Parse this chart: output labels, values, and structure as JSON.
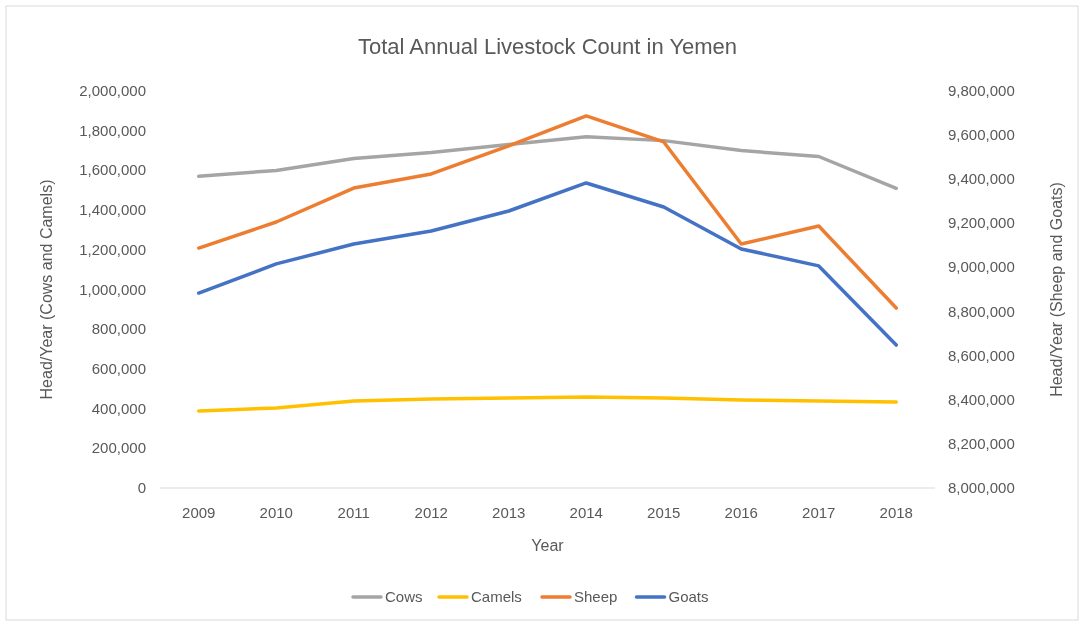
{
  "chart_data": {
    "type": "line",
    "title": "Total Annual Livestock Count in Yemen",
    "xlabel": "Year",
    "ylabel": "Head/Year (Cows and Camels)",
    "y2label": "Head/Year (Sheep and Goats)",
    "categories": [
      "2009",
      "2010",
      "2011",
      "2012",
      "2013",
      "2014",
      "2015",
      "2016",
      "2017",
      "2018"
    ],
    "ylim": [
      0,
      2000000
    ],
    "yticks": [
      {
        "value": 0,
        "label": "0"
      },
      {
        "value": 200000,
        "label": "200,000"
      },
      {
        "value": 400000,
        "label": "400,000"
      },
      {
        "value": 600000,
        "label": "600,000"
      },
      {
        "value": 800000,
        "label": "800,000"
      },
      {
        "value": 1000000,
        "label": "1,000,000"
      },
      {
        "value": 1200000,
        "label": "1,200,000"
      },
      {
        "value": 1400000,
        "label": "1,400,000"
      },
      {
        "value": 1600000,
        "label": "1,600,000"
      },
      {
        "value": 1800000,
        "label": "1,800,000"
      },
      {
        "value": 2000000,
        "label": "2,000,000"
      }
    ],
    "y2lim": [
      8000000,
      9800000
    ],
    "y2ticks": [
      {
        "value": 8000000,
        "label": "8,000,000"
      },
      {
        "value": 8200000,
        "label": "8,200,000"
      },
      {
        "value": 8400000,
        "label": "8,400,000"
      },
      {
        "value": 8600000,
        "label": "8,600,000"
      },
      {
        "value": 8800000,
        "label": "8,800,000"
      },
      {
        "value": 9000000,
        "label": "9,000,000"
      },
      {
        "value": 9200000,
        "label": "9,200,000"
      },
      {
        "value": 9400000,
        "label": "9,400,000"
      },
      {
        "value": 9600000,
        "label": "9,600,000"
      },
      {
        "value": 9800000,
        "label": "9,800,000"
      }
    ],
    "series": [
      {
        "name": "Cows",
        "color": "#a5a5a5",
        "values": [
          1570000,
          1600000,
          1660000,
          1690000,
          1730000,
          1770000,
          1750000,
          1700000,
          1670000,
          1510000
        ]
      },
      {
        "name": "Camels",
        "color": "#ffc000",
        "values": [
          388000,
          403000,
          438000,
          448000,
          453000,
          458000,
          453000,
          443000,
          438000,
          433000
        ]
      },
      {
        "name": "Sheep",
        "color": "#ed7d31",
        "axis": "y2",
        "values": [
          9088000,
          9206000,
          9360000,
          9424000,
          9551000,
          9687000,
          9569000,
          9106000,
          9188000,
          8816000
        ]
      },
      {
        "name": "Goats",
        "color": "#4472c4",
        "axis": "y2",
        "values": [
          8884000,
          9016000,
          9106000,
          9165000,
          9256000,
          9383000,
          9274000,
          9084000,
          9007000,
          8648000
        ]
      }
    ],
    "legend": "bottom",
    "grid": false,
    "marker": "none",
    "line_style": "solid"
  }
}
